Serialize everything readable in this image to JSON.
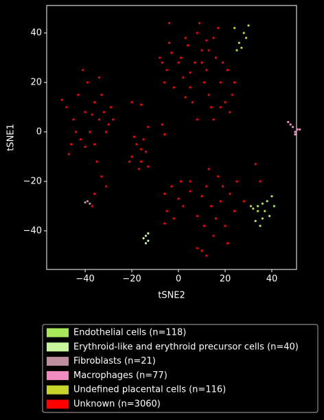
{
  "chart_data": {
    "type": "scatter",
    "xlabel": "tSNE2",
    "ylabel": "tSNE1",
    "xlim": [
      -56.5,
      50.6
    ],
    "ylim": [
      -55.6,
      51.1
    ],
    "xticks": [
      {
        "value": -40,
        "label": "−40"
      },
      {
        "value": -20,
        "label": "−20"
      },
      0,
      20,
      40
    ],
    "yticks": [
      {
        "value": -40,
        "label": "−40"
      },
      {
        "value": -20,
        "label": "−20"
      },
      0,
      20,
      40
    ],
    "legend": "below",
    "series": [
      {
        "name": "Endothelial cells (n=118)",
        "color": "#a8e85a",
        "x": [
          34,
          36,
          38,
          37,
          35,
          40,
          39,
          33,
          36,
          41
        ],
        "y": [
          -30,
          -35,
          -28,
          -32,
          -38,
          -26,
          -34,
          -36,
          -29,
          -30
        ]
      },
      {
        "name": "Erythroid-like and erythroid precursor cells (n=40)",
        "color": "#c8f59c",
        "x": [
          -14,
          -13,
          -15,
          -14,
          -13
        ],
        "y": [
          -42,
          -44,
          -43,
          -45,
          -41
        ]
      },
      {
        "name": "Fibroblasts (n=21)",
        "color": "#bf8fa0",
        "x": [
          -39,
          -38,
          -40
        ],
        "y": [
          -28,
          -29,
          -28.5
        ]
      },
      {
        "name": "Macrophages (n=77)",
        "color": "#f08cc0",
        "x": [
          47,
          49,
          50,
          51,
          48,
          52,
          50
        ],
        "y": [
          4,
          2,
          0,
          1,
          3,
          1,
          -1
        ]
      },
      {
        "name": "Undefined placental cells (n=116)",
        "color": "#c8d42c",
        "x": [
          26,
          28,
          27,
          25,
          30,
          29,
          24,
          32,
          31,
          34
        ],
        "y": [
          36,
          40,
          34,
          33,
          43,
          38,
          42,
          -31,
          -30,
          -32
        ]
      },
      {
        "name": "Unknown (n=3060)",
        "color": "#ff0000",
        "x": [
          -8,
          -5,
          -3,
          0,
          2,
          4,
          5,
          7,
          8,
          10,
          12,
          13,
          15,
          16,
          18,
          20,
          22,
          19,
          14,
          11,
          6,
          3,
          -6,
          -2,
          9,
          17,
          23,
          21,
          1,
          12,
          -4,
          8,
          15,
          24,
          -7,
          5,
          10,
          18,
          13,
          3,
          -48,
          -45,
          -43,
          -40,
          -38,
          -36,
          -34,
          -32,
          -30,
          -42,
          -39,
          -36,
          -44,
          -33,
          -28,
          -46,
          -41,
          -37,
          -35,
          -31,
          -50,
          -47,
          -29,
          -40,
          -34,
          -20,
          -18,
          -16,
          -14,
          -17,
          -19,
          -15,
          -13,
          -21,
          -16,
          -20,
          -16,
          -6,
          -7,
          -13,
          -4,
          -33,
          -36,
          -31,
          5,
          13,
          -6,
          -3,
          0,
          2,
          5,
          -5,
          8,
          10,
          12,
          14,
          16,
          18,
          20,
          22,
          24,
          19,
          15,
          11,
          1,
          -2,
          25,
          28,
          17,
          21,
          -6,
          10,
          8,
          12,
          -37,
          33,
          35
        ],
        "y": [
          30,
          25,
          32,
          28,
          22,
          35,
          18,
          28,
          40,
          33,
          25,
          15,
          38,
          30,
          20,
          12,
          8,
          28,
          10,
          20,
          12,
          38,
          20,
          18,
          44,
          42,
          15,
          25,
          30,
          37,
          36,
          5,
          5,
          20,
          28,
          24,
          28,
          10,
          33,
          14,
          10,
          5,
          15,
          8,
          0,
          12,
          5,
          8,
          3,
          -3,
          20,
          -5,
          0,
          15,
          5,
          -5,
          25,
          7,
          -12,
          0,
          13,
          -9,
          10,
          -6,
          22,
          -10,
          -5,
          -12,
          -8,
          -15,
          -2,
          -3,
          -14,
          -12,
          -7,
          12,
          11,
          -1,
          3,
          2,
          44,
          -18,
          -25,
          -22,
          -20,
          -15,
          -25,
          -22,
          -27,
          -30,
          -24,
          -32,
          -34,
          -26,
          -22,
          -30,
          -35,
          -28,
          -38,
          -25,
          -32,
          -22,
          -42,
          -38,
          -20,
          -35,
          -20,
          -28,
          -18,
          -45,
          -37,
          -48,
          -47,
          -50,
          -30,
          -13,
          -20
        ]
      }
    ]
  }
}
